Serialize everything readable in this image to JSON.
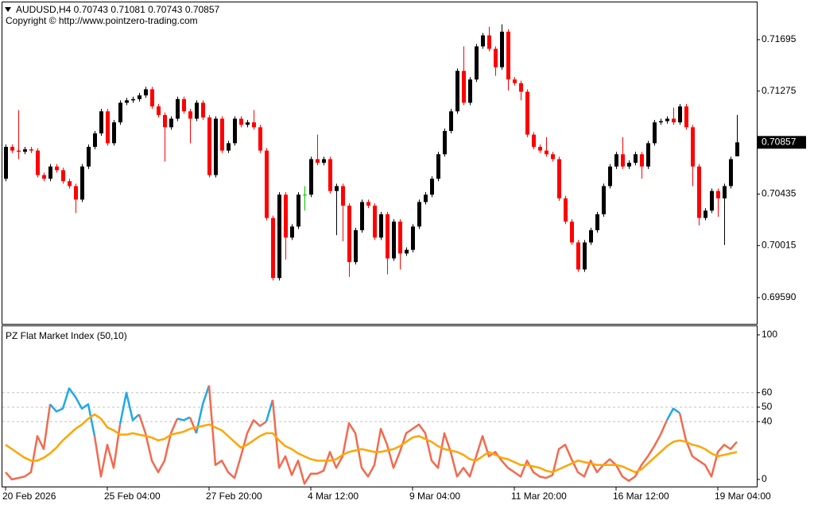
{
  "chart_data": [
    {
      "type": "candlestick",
      "title": "AUDUSD,H4 0.70743 0.71081 0.70743 0.70857",
      "subtitle": "Copyright © http://www.pointzero-trading.com",
      "categories": [
        "20 Feb 2026",
        null,
        null,
        null,
        null,
        null,
        null,
        null,
        null,
        null,
        null,
        null,
        null,
        null,
        null,
        null,
        "25 Feb 04:00",
        null,
        null,
        null,
        null,
        null,
        null,
        null,
        null,
        null,
        null,
        null,
        null,
        null,
        null,
        null,
        "27 Feb 20:00",
        null,
        null,
        null,
        null,
        null,
        null,
        null,
        null,
        null,
        null,
        null,
        null,
        null,
        null,
        null,
        "4 Mar 12:00",
        null,
        null,
        null,
        null,
        null,
        null,
        null,
        null,
        null,
        null,
        null,
        null,
        null,
        null,
        null,
        "9 Mar 04:00",
        null,
        null,
        null,
        null,
        null,
        null,
        null,
        null,
        null,
        null,
        null,
        null,
        null,
        null,
        null,
        "11 Mar 20:00",
        null,
        null,
        null,
        null,
        null,
        null,
        null,
        null,
        null,
        null,
        null,
        null,
        null,
        null,
        null,
        "16 Mar 12:00",
        null,
        null,
        null,
        null,
        null,
        null,
        null,
        null,
        null,
        null,
        null,
        null,
        null,
        null,
        null,
        "19 Mar 04:00",
        null,
        null,
        null
      ],
      "open": [
        0.7056,
        0.7082,
        0.7079,
        0.7078,
        0.708,
        0.7079,
        0.7059,
        0.7056,
        0.7066,
        0.7063,
        0.7054,
        0.705,
        0.7039,
        0.7066,
        0.7082,
        0.7093,
        0.7111,
        0.7085,
        0.7102,
        0.7118,
        0.712,
        0.7121,
        0.7124,
        0.7129,
        0.7115,
        0.7108,
        0.7098,
        0.7105,
        0.7121,
        0.7111,
        0.7105,
        0.7118,
        0.7106,
        0.7059,
        0.7105,
        0.7079,
        0.7085,
        0.7105,
        0.71,
        0.7102,
        0.7098,
        0.7079,
        0.7024,
        0.6975,
        0.7043,
        0.7008,
        0.7017,
        0.7043,
        0.7043,
        0.7072,
        0.7069,
        0.7072,
        0.7046,
        0.705,
        0.7034,
        0.6988,
        0.7014,
        0.7037,
        0.7034,
        0.7008,
        0.7027,
        0.6991,
        0.7021,
        0.6995,
        0.6998,
        0.7017,
        0.7037,
        0.7043,
        0.7056,
        0.7076,
        0.7095,
        0.7111,
        0.7144,
        0.7118,
        0.7137,
        0.7164,
        0.7173,
        0.7162,
        0.7147,
        0.7176,
        0.7137,
        0.7134,
        0.7127,
        0.7092,
        0.7082,
        0.7079,
        0.7076,
        0.7072,
        0.704,
        0.7021,
        0.7004,
        0.6982,
        0.7004,
        0.7014,
        0.7027,
        0.705,
        0.7066,
        0.7076,
        0.7066,
        0.7069,
        0.7076,
        0.7066,
        0.7085,
        0.7102,
        0.7103,
        0.7105,
        0.7102,
        0.7115,
        0.7098,
        0.7066,
        0.7024,
        0.703,
        0.7046,
        0.704,
        0.705,
        0.70743
      ],
      "high": [
        0.7084,
        0.7084,
        0.7112,
        0.7082,
        0.7082,
        0.7081,
        0.7061,
        0.7068,
        0.7068,
        0.7065,
        0.7056,
        0.7052,
        0.7068,
        0.7084,
        0.7095,
        0.7113,
        0.7113,
        0.7104,
        0.712,
        0.7122,
        0.7123,
        0.7126,
        0.7131,
        0.7131,
        0.7117,
        0.711,
        0.7107,
        0.7123,
        0.7123,
        0.7113,
        0.712,
        0.712,
        0.7108,
        0.7107,
        0.7107,
        0.7087,
        0.7107,
        0.7107,
        0.7104,
        0.7112,
        0.71,
        0.7081,
        0.7026,
        0.7045,
        0.7045,
        0.7019,
        0.7045,
        0.705,
        0.7074,
        0.7092,
        0.7074,
        0.7074,
        0.7052,
        0.7052,
        0.7036,
        0.7016,
        0.7039,
        0.7039,
        0.7036,
        0.7029,
        0.7029,
        0.7023,
        0.7023,
        0.7,
        0.7019,
        0.7039,
        0.7045,
        0.7058,
        0.7078,
        0.7097,
        0.7113,
        0.7146,
        0.7164,
        0.7139,
        0.7166,
        0.7175,
        0.718,
        0.7164,
        0.7182,
        0.7178,
        0.7139,
        0.7136,
        0.7129,
        0.7094,
        0.7084,
        0.709,
        0.7078,
        0.7074,
        0.7042,
        0.7023,
        0.7006,
        0.7006,
        0.7016,
        0.7029,
        0.7052,
        0.7068,
        0.7078,
        0.709,
        0.7071,
        0.7078,
        0.7078,
        0.7087,
        0.7104,
        0.7105,
        0.7107,
        0.7114,
        0.7117,
        0.7117,
        0.71,
        0.7068,
        0.7032,
        0.7048,
        0.7048,
        0.7052,
        0.7074,
        0.71081
      ],
      "low": [
        0.7054,
        0.7077,
        0.7072,
        0.7076,
        0.7077,
        0.7057,
        0.7054,
        0.7054,
        0.7061,
        0.7052,
        0.7048,
        0.7028,
        0.7037,
        0.7064,
        0.708,
        0.7091,
        0.7083,
        0.7083,
        0.71,
        0.7116,
        0.7118,
        0.7119,
        0.7122,
        0.7113,
        0.7106,
        0.707,
        0.7096,
        0.7103,
        0.7109,
        0.7085,
        0.7103,
        0.7104,
        0.7057,
        0.7057,
        0.7077,
        0.7077,
        0.7083,
        0.7098,
        0.7098,
        0.7096,
        0.7077,
        0.7022,
        0.6973,
        0.6973,
        0.699,
        0.7006,
        0.7015,
        0.703,
        0.7041,
        0.7067,
        0.7067,
        0.7044,
        0.701,
        0.7005,
        0.6976,
        0.6986,
        0.7012,
        0.7032,
        0.7006,
        0.7006,
        0.6978,
        0.6989,
        0.6982,
        0.6993,
        0.6996,
        0.7015,
        0.7035,
        0.7041,
        0.7054,
        0.7074,
        0.7093,
        0.7109,
        0.7116,
        0.7116,
        0.7135,
        0.7162,
        0.716,
        0.714,
        0.7145,
        0.7128,
        0.7132,
        0.712,
        0.709,
        0.708,
        0.7077,
        0.7074,
        0.707,
        0.7038,
        0.7019,
        0.7002,
        0.698,
        0.698,
        0.7002,
        0.7012,
        0.7025,
        0.7048,
        0.7064,
        0.7064,
        0.7064,
        0.7067,
        0.7056,
        0.7064,
        0.7083,
        0.71,
        0.7101,
        0.71,
        0.71,
        0.7096,
        0.705,
        0.7018,
        0.7022,
        0.7028,
        0.7025,
        0.7002,
        0.7048,
        0.70743
      ],
      "close": [
        0.7082,
        0.7079,
        0.7078,
        0.708,
        0.7079,
        0.7059,
        0.7056,
        0.7066,
        0.7063,
        0.7054,
        0.705,
        0.7039,
        0.7066,
        0.7082,
        0.7093,
        0.7111,
        0.7085,
        0.7102,
        0.7118,
        0.712,
        0.7121,
        0.7124,
        0.7129,
        0.7115,
        0.7108,
        0.7098,
        0.7105,
        0.7121,
        0.7111,
        0.7105,
        0.7118,
        0.7106,
        0.7059,
        0.7105,
        0.7079,
        0.7085,
        0.7105,
        0.71,
        0.7102,
        0.7098,
        0.7079,
        0.7024,
        0.6975,
        0.7043,
        0.7008,
        0.7017,
        0.7043,
        0.7043,
        0.7072,
        0.7069,
        0.7072,
        0.7046,
        0.705,
        0.7034,
        0.6988,
        0.7014,
        0.7037,
        0.7034,
        0.7008,
        0.7027,
        0.6991,
        0.7021,
        0.6995,
        0.6998,
        0.7017,
        0.7037,
        0.7043,
        0.7056,
        0.7076,
        0.7095,
        0.7111,
        0.7144,
        0.7118,
        0.7137,
        0.7164,
        0.7173,
        0.7162,
        0.7147,
        0.7176,
        0.7137,
        0.7134,
        0.7127,
        0.7092,
        0.7082,
        0.7079,
        0.7076,
        0.7072,
        0.704,
        0.7021,
        0.7004,
        0.6982,
        0.7004,
        0.7014,
        0.7027,
        0.705,
        0.7066,
        0.7076,
        0.7066,
        0.7069,
        0.7076,
        0.7066,
        0.7085,
        0.7102,
        0.7103,
        0.7105,
        0.7102,
        0.7115,
        0.7098,
        0.7066,
        0.7024,
        0.703,
        0.7046,
        0.704,
        0.705,
        0.7072,
        0.70857
      ],
      "up_color": "#000000",
      "down_color": "#ff0000",
      "doji_color": "#00c000",
      "ylim": [
        0.69376,
        0.71999
      ],
      "yticks": [
        0.71695,
        0.71275,
        0.70435,
        0.70015,
        {
          "value": 0.6959,
          "label": "0.69590"
        }
      ]
    },
    {
      "type": "line",
      "title": "PZ Flat Market Index (50,10)",
      "series": [
        {
          "color": "#f26a4f",
          "threshold": 40,
          "threshold_color": "#20a8e8",
          "values": [
            5,
            0,
            1,
            2,
            5,
            30,
            21,
            52,
            47,
            49,
            63,
            57,
            49,
            52,
            30,
            2,
            24,
            8,
            38,
            60,
            41,
            45,
            32,
            13,
            5,
            13,
            32,
            42,
            41,
            43,
            32,
            52,
            65,
            10,
            13,
            5,
            1,
            16,
            32,
            41,
            37,
            40,
            55,
            8,
            16,
            3,
            13,
            -3,
            4,
            4,
            6,
            19,
            8,
            16,
            39,
            32,
            8,
            2,
            10,
            35,
            24,
            8,
            19,
            32,
            35,
            38,
            32,
            13,
            8,
            32,
            19,
            2,
            8,
            2,
            16,
            30,
            16,
            19,
            13,
            8,
            5,
            2,
            13,
            5,
            2,
            1,
            3,
            21,
            24,
            14,
            5,
            2,
            13,
            5,
            10,
            14,
            10,
            2,
            -1,
            2,
            10,
            16,
            23,
            31,
            41,
            49,
            46,
            27,
            16,
            13,
            10,
            2,
            19,
            24,
            21,
            26
          ]
        },
        {
          "color": "#ffa500",
          "values": [
            24,
            21,
            18,
            15,
            13,
            13,
            15,
            18,
            22,
            27,
            31,
            35,
            38,
            42,
            45,
            42,
            36,
            34,
            31,
            31,
            32,
            31,
            30,
            29,
            27,
            28,
            31,
            32,
            33,
            35,
            36,
            37,
            38,
            36,
            34,
            30,
            26,
            22,
            24,
            27,
            30,
            32,
            32,
            27,
            23,
            21,
            18,
            16,
            14,
            13,
            13,
            13,
            14,
            17,
            19,
            20,
            21,
            20,
            19,
            19,
            20,
            21,
            23,
            26,
            29,
            30,
            28,
            26,
            23,
            21,
            20,
            19,
            17,
            14,
            13,
            16,
            19,
            17,
            15,
            14,
            12,
            10,
            10,
            9,
            8,
            6,
            5,
            7,
            9,
            11,
            13,
            12,
            11,
            10,
            10,
            10,
            10,
            9,
            7,
            5,
            7,
            11,
            15,
            19,
            23,
            26,
            27,
            26,
            24,
            23,
            21,
            18,
            16,
            17,
            18,
            19
          ]
        }
      ],
      "ylim": [
        -4.4,
        106
      ],
      "yticks": [
        0,
        100
      ],
      "levels": [
        40,
        50,
        60
      ]
    }
  ]
}
